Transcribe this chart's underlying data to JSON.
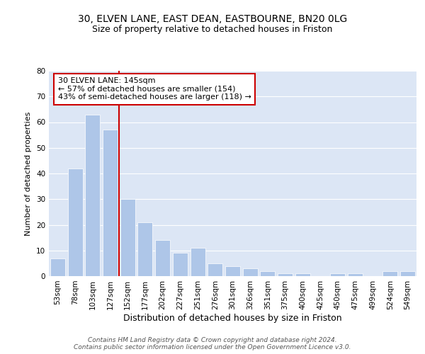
{
  "title1": "30, ELVEN LANE, EAST DEAN, EASTBOURNE, BN20 0LG",
  "title2": "Size of property relative to detached houses in Friston",
  "xlabel": "Distribution of detached houses by size in Friston",
  "ylabel": "Number of detached properties",
  "categories": [
    "53sqm",
    "78sqm",
    "103sqm",
    "127sqm",
    "152sqm",
    "177sqm",
    "202sqm",
    "227sqm",
    "251sqm",
    "276sqm",
    "301sqm",
    "326sqm",
    "351sqm",
    "375sqm",
    "400sqm",
    "425sqm",
    "450sqm",
    "475sqm",
    "499sqm",
    "524sqm",
    "549sqm"
  ],
  "values": [
    7,
    42,
    63,
    57,
    30,
    21,
    14,
    9,
    11,
    5,
    4,
    3,
    2,
    1,
    1,
    0,
    1,
    1,
    0,
    2,
    2
  ],
  "bar_color": "#aec6e8",
  "vline_color": "#cc0000",
  "vline_x_index": 3.5,
  "annotation_text": "30 ELVEN LANE: 145sqm\n← 57% of detached houses are smaller (154)\n43% of semi-detached houses are larger (118) →",
  "annotation_box_color": "#ffffff",
  "annotation_box_edge": "#cc0000",
  "background_color": "#dce6f5",
  "ylim": [
    0,
    80
  ],
  "yticks": [
    0,
    10,
    20,
    30,
    40,
    50,
    60,
    70,
    80
  ],
  "footer": "Contains HM Land Registry data © Crown copyright and database right 2024.\nContains public sector information licensed under the Open Government Licence v3.0.",
  "title1_fontsize": 10,
  "title2_fontsize": 9,
  "xlabel_fontsize": 9,
  "ylabel_fontsize": 8,
  "tick_fontsize": 7.5,
  "annotation_fontsize": 8,
  "footer_fontsize": 6.5
}
